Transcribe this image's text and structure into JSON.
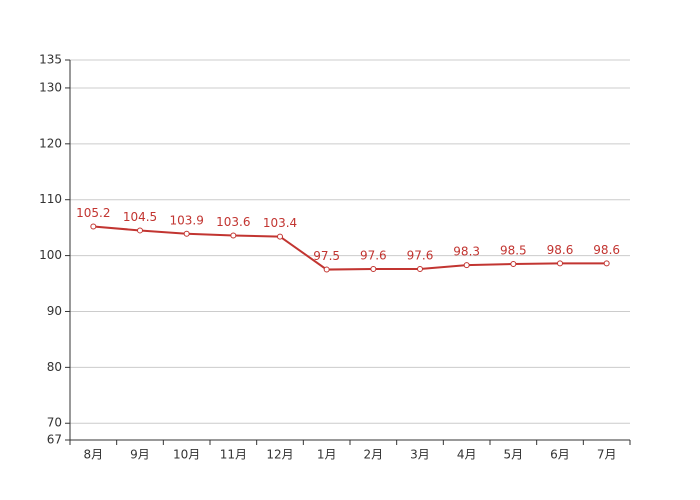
{
  "chart_data": {
    "type": "line",
    "categories": [
      "8月",
      "9月",
      "10月",
      "11月",
      "12月",
      "1月",
      "2月",
      "3月",
      "4月",
      "5月",
      "6月",
      "7月"
    ],
    "series": [
      {
        "color": "#c23531",
        "values": [
          105.2,
          104.5,
          103.9,
          103.6,
          103.4,
          97.5,
          97.6,
          97.6,
          98.3,
          98.5,
          98.6,
          98.6
        ]
      }
    ],
    "ylim": [
      67,
      135
    ],
    "yticks": [
      67,
      70,
      80,
      90,
      100,
      110,
      120,
      130,
      135
    ],
    "grid": true,
    "data_labels": true
  }
}
